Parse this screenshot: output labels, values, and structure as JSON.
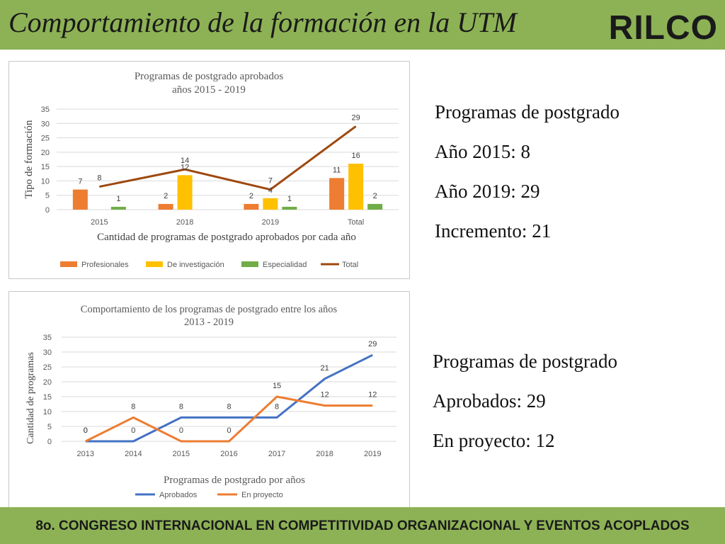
{
  "header": {
    "title": "Comportamiento de la formación en la UTM",
    "logo_text": "RILCO"
  },
  "footer": {
    "text": "8o. CONGRESO INTERNACIONAL EN COMPETITIVIDAD ORGANIZACIONAL Y EVENTOS ACOPLADOS"
  },
  "colors": {
    "header_green": "#8db255",
    "profesionales": "#ed7d31",
    "investigacion": "#ffc000",
    "especialidad": "#70ad47",
    "total": "#9e480e",
    "aprobados": "#4472c4",
    "en_proyecto": "#ed7d31"
  },
  "panel1": {
    "line1": "Programas de postgrado",
    "line2": "Año 2015: 8",
    "line3": "Año 2019: 29",
    "line4": "Incremento: 21"
  },
  "panel2": {
    "line1": "Programas de postgrado",
    "line2": "Aprobados: 29",
    "line3": "En proyecto: 12"
  },
  "chart_data": [
    {
      "type": "bar",
      "title": "Programas de postgrado aprobados",
      "subtitle": "años 2015 - 2019",
      "xlabel": "Cantidad de programas de postgrado aprobados por cada año",
      "ylabel": "Tipo de formación",
      "ylim": [
        0,
        35
      ],
      "yticks": [
        0,
        5,
        10,
        15,
        20,
        25,
        30,
        35
      ],
      "grid": true,
      "legend_position": "bottom",
      "categories": [
        "2015",
        "2018",
        "2019",
        "Total"
      ],
      "series": [
        {
          "name": "Profesionales",
          "type": "bar",
          "values": [
            7,
            2,
            2,
            11
          ]
        },
        {
          "name": "De investigación",
          "type": "bar",
          "values": [
            0,
            12,
            4,
            16
          ]
        },
        {
          "name": "Especialidad",
          "type": "bar",
          "values": [
            1,
            0,
            1,
            2
          ]
        },
        {
          "name": "Total",
          "type": "line",
          "values": [
            8,
            14,
            7,
            29
          ]
        }
      ]
    },
    {
      "type": "line",
      "title": "Comportamiento de los programas de postgrado entre los años",
      "subtitle": "2013 - 2019",
      "xlabel": "Programas de postgrado por años",
      "ylabel": "Cantidad de programas",
      "ylim": [
        0,
        35
      ],
      "yticks": [
        0,
        5,
        10,
        15,
        20,
        25,
        30,
        35
      ],
      "grid": true,
      "legend_position": "bottom",
      "categories": [
        "2013",
        "2014",
        "2015",
        "2016",
        "2017",
        "2018",
        "2019"
      ],
      "series": [
        {
          "name": "Aprobados",
          "values": [
            0,
            0,
            8,
            8,
            8,
            21,
            29
          ]
        },
        {
          "name": "En proyecto",
          "values": [
            0,
            8,
            0,
            0,
            15,
            12,
            12
          ]
        }
      ]
    }
  ]
}
